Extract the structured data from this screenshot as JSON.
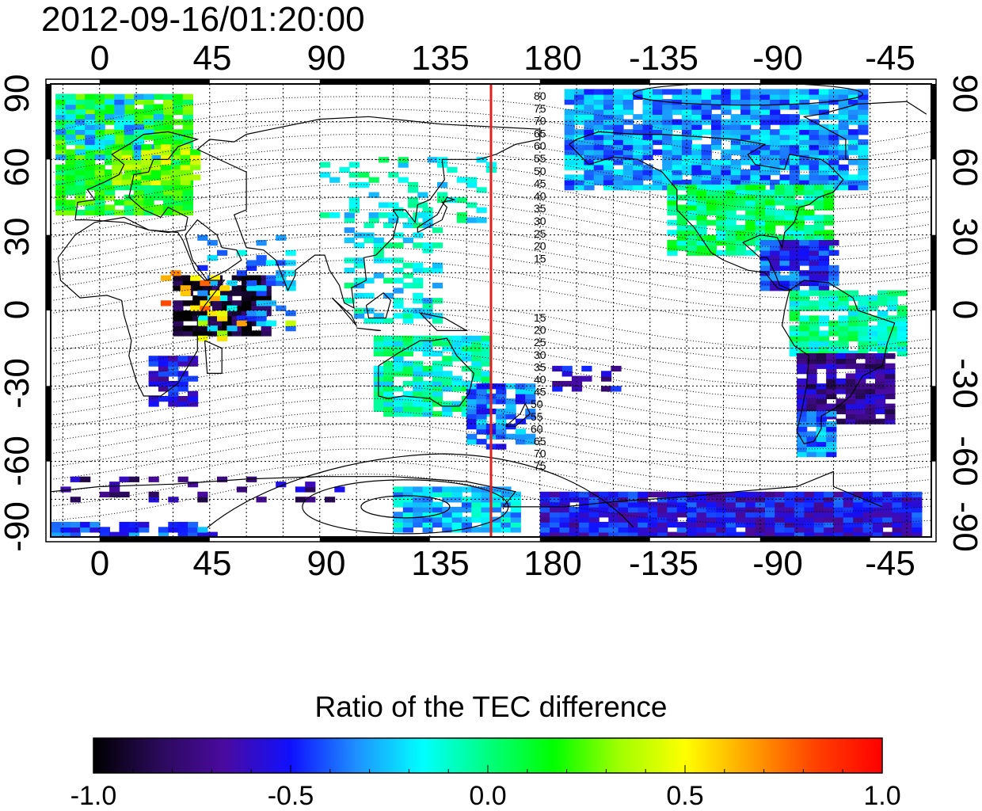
{
  "title": "2012-09-16/01:20:00",
  "map": {
    "x_ticks_top": [
      "0",
      "45",
      "90",
      "135",
      "180",
      "-135",
      "-90",
      "-45"
    ],
    "x_ticks_bottom": [
      "0",
      "45",
      "90",
      "135",
      "180",
      "-135",
      "-90",
      "-45"
    ],
    "y_ticks_left": [
      "90",
      "60",
      "30",
      "0",
      "-30",
      "-60",
      "-90"
    ],
    "y_ticks_right": [
      "90",
      "60",
      "30",
      "0",
      "-30",
      "-60",
      "-90"
    ],
    "terminator_longitude": 160,
    "contour_labels_upper": [
      "80",
      "75",
      "70",
      "65",
      "60",
      "55",
      "50",
      "45",
      "40",
      "35",
      "30",
      "25",
      "20",
      "15"
    ],
    "contour_labels_lower": [
      "15",
      "20",
      "25",
      "30",
      "35",
      "40",
      "45",
      "50",
      "55",
      "60",
      "65",
      "70",
      "75"
    ],
    "colors": {
      "terminator": "#e0201c",
      "background": "#ffffff",
      "frame": "#000000"
    }
  },
  "colorbar": {
    "title": "Ratio of the TEC difference",
    "tick_labels": [
      "-1.0",
      "-0.5",
      "0.0",
      "0.5",
      "1.0"
    ],
    "range": [
      -1.0,
      1.0
    ],
    "colormap": [
      "#000000",
      "#2a0a5a",
      "#4a0aa0",
      "#1010ff",
      "#1e90ff",
      "#00ffff",
      "#00ff7f",
      "#00ff00",
      "#a0ff00",
      "#ffff00",
      "#ffa000",
      "#ff4000",
      "#ff0000"
    ]
  }
}
